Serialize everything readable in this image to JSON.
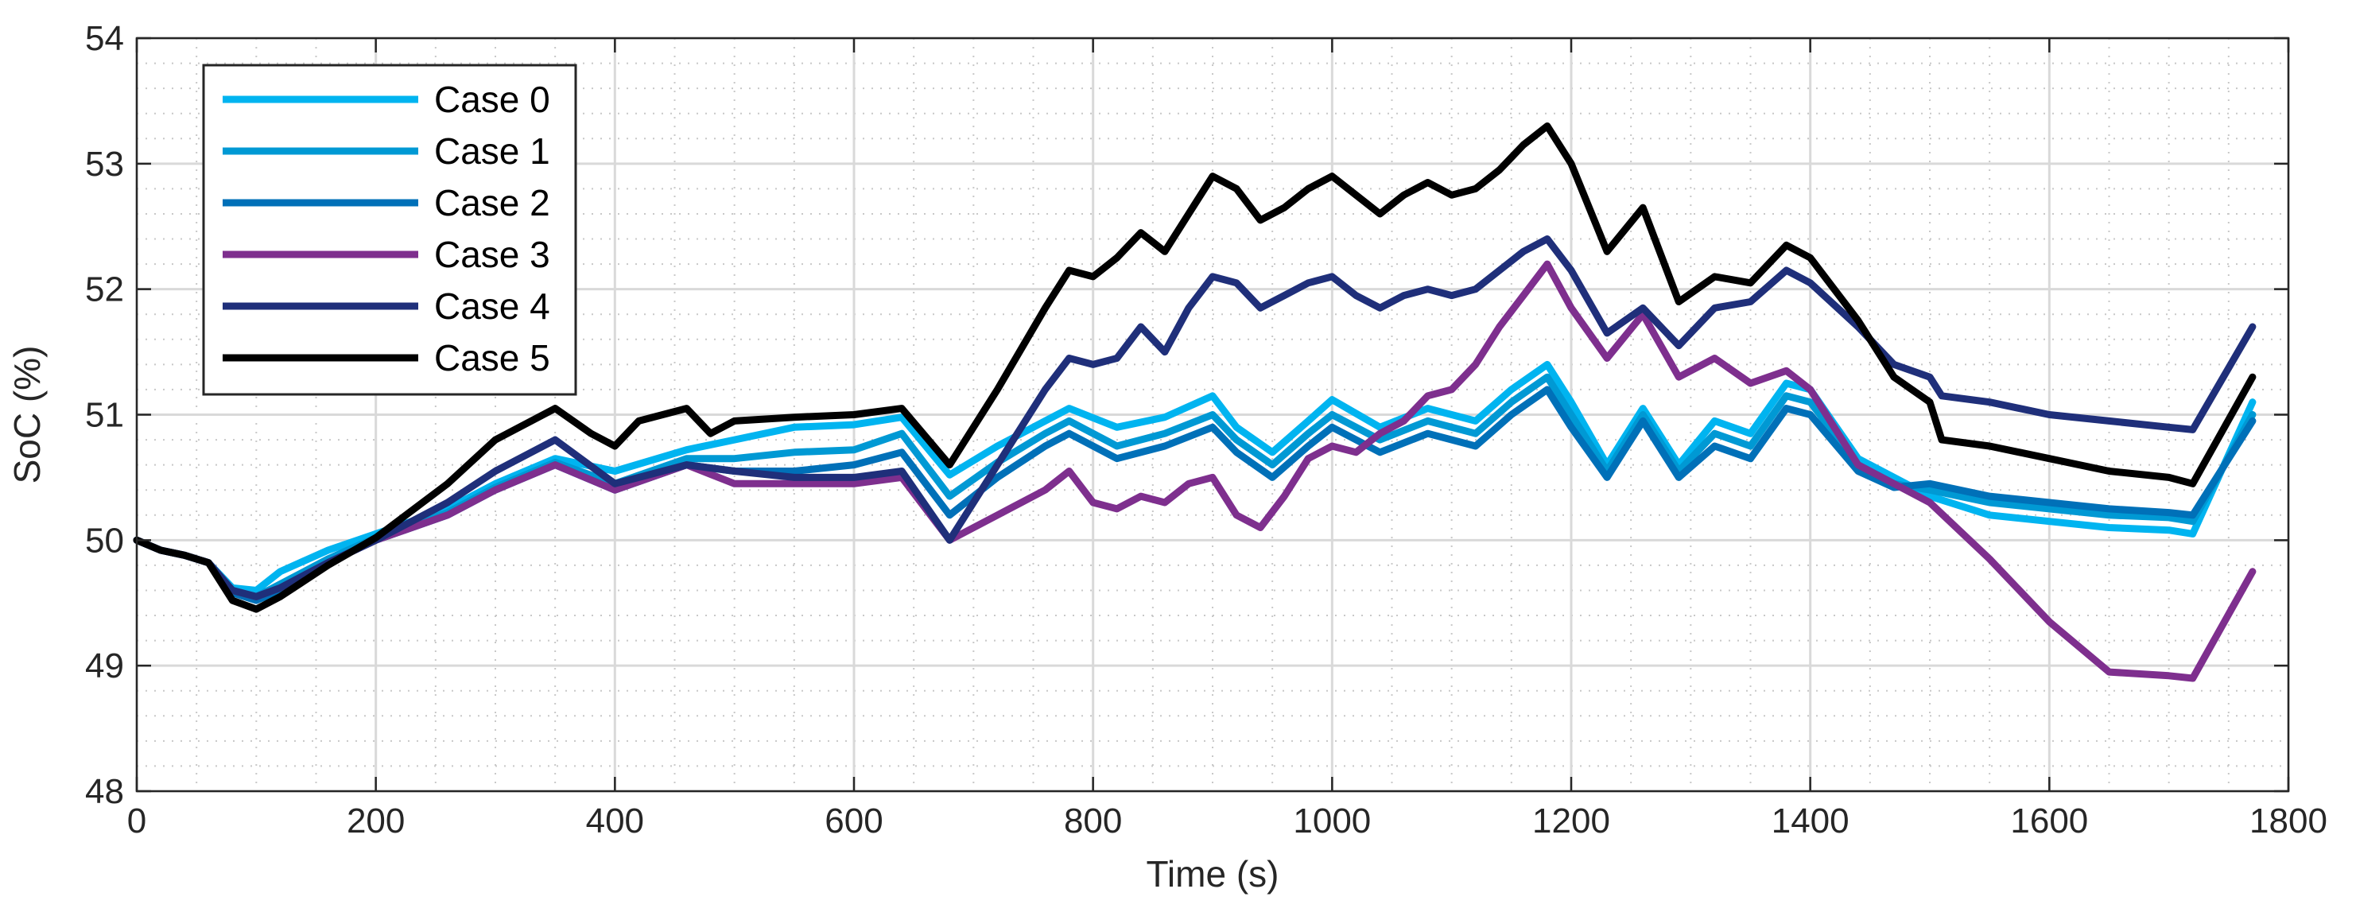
{
  "chart_data": {
    "type": "line",
    "xlabel": "Time (s)",
    "ylabel": "SoC (%)",
    "xlim": [
      0,
      1800
    ],
    "ylim": [
      48,
      54
    ],
    "xticks": [
      "0",
      "200",
      "400",
      "600",
      "800",
      "1000",
      "1200",
      "1400",
      "1600",
      "1800"
    ],
    "yticks": [
      "48",
      "49",
      "50",
      "51",
      "52",
      "53",
      "54"
    ],
    "grid": "major-and-minor",
    "legend_position": "top-left",
    "series": [
      {
        "name": "Case 0",
        "color": "#00B4F0",
        "x": [
          0,
          20,
          40,
          60,
          80,
          100,
          120,
          160,
          200,
          260,
          300,
          350,
          400,
          460,
          500,
          550,
          600,
          640,
          680,
          720,
          760,
          780,
          820,
          860,
          900,
          920,
          950,
          980,
          1000,
          1040,
          1080,
          1120,
          1150,
          1180,
          1200,
          1230,
          1260,
          1290,
          1320,
          1350,
          1380,
          1400,
          1440,
          1470,
          1500,
          1550,
          1600,
          1650,
          1700,
          1720,
          1770
        ],
        "y": [
          50.0,
          49.92,
          49.88,
          49.82,
          49.62,
          49.6,
          49.75,
          49.92,
          50.05,
          50.25,
          50.45,
          50.65,
          50.55,
          50.72,
          50.8,
          50.9,
          50.92,
          50.98,
          50.52,
          50.75,
          50.95,
          51.05,
          50.9,
          50.98,
          51.15,
          50.9,
          50.7,
          50.95,
          51.12,
          50.9,
          51.05,
          50.95,
          51.2,
          51.4,
          51.1,
          50.6,
          51.05,
          50.6,
          50.95,
          50.85,
          51.25,
          51.2,
          50.65,
          50.5,
          50.35,
          50.2,
          50.15,
          50.1,
          50.08,
          50.05,
          51.1
        ]
      },
      {
        "name": "Case 1",
        "color": "#0099D4",
        "x": [
          0,
          20,
          40,
          60,
          80,
          100,
          120,
          160,
          200,
          260,
          300,
          350,
          400,
          460,
          500,
          550,
          600,
          640,
          680,
          720,
          760,
          780,
          820,
          860,
          900,
          920,
          950,
          980,
          1000,
          1040,
          1080,
          1120,
          1150,
          1180,
          1200,
          1230,
          1260,
          1290,
          1320,
          1350,
          1380,
          1400,
          1440,
          1470,
          1500,
          1550,
          1600,
          1650,
          1700,
          1720,
          1770
        ],
        "y": [
          50.0,
          49.92,
          49.88,
          49.82,
          49.6,
          49.55,
          49.65,
          49.85,
          50.02,
          50.22,
          50.42,
          50.62,
          50.45,
          50.65,
          50.65,
          50.7,
          50.72,
          50.85,
          50.35,
          50.62,
          50.85,
          50.95,
          50.75,
          50.85,
          51.0,
          50.8,
          50.6,
          50.85,
          51.0,
          50.8,
          50.95,
          50.85,
          51.1,
          51.3,
          51.0,
          50.55,
          51.0,
          50.55,
          50.85,
          50.75,
          51.15,
          51.1,
          50.6,
          50.45,
          50.4,
          50.3,
          50.25,
          50.2,
          50.18,
          50.15,
          51.0
        ]
      },
      {
        "name": "Case 2",
        "color": "#0070B8",
        "x": [
          0,
          20,
          40,
          60,
          80,
          100,
          120,
          160,
          200,
          260,
          300,
          350,
          400,
          460,
          500,
          550,
          600,
          640,
          680,
          720,
          760,
          780,
          820,
          860,
          900,
          920,
          950,
          980,
          1000,
          1040,
          1080,
          1120,
          1150,
          1180,
          1200,
          1230,
          1260,
          1290,
          1320,
          1350,
          1380,
          1400,
          1440,
          1470,
          1500,
          1550,
          1600,
          1650,
          1700,
          1720,
          1770
        ],
        "y": [
          50.0,
          49.92,
          49.88,
          49.82,
          49.58,
          49.52,
          49.6,
          49.82,
          50.0,
          50.2,
          50.4,
          50.6,
          50.4,
          50.6,
          50.55,
          50.55,
          50.6,
          50.7,
          50.2,
          50.5,
          50.75,
          50.85,
          50.65,
          50.75,
          50.9,
          50.7,
          50.5,
          50.75,
          50.9,
          50.7,
          50.85,
          50.75,
          51.0,
          51.2,
          50.9,
          50.5,
          50.95,
          50.5,
          50.75,
          50.65,
          51.05,
          51.0,
          50.55,
          50.42,
          50.45,
          50.35,
          50.3,
          50.25,
          50.22,
          50.2,
          50.95
        ]
      },
      {
        "name": "Case 3",
        "color": "#7E2F8E",
        "x": [
          0,
          20,
          40,
          60,
          80,
          100,
          120,
          160,
          200,
          260,
          300,
          350,
          400,
          460,
          500,
          550,
          600,
          640,
          680,
          720,
          760,
          780,
          800,
          820,
          840,
          860,
          880,
          900,
          920,
          940,
          960,
          980,
          1000,
          1020,
          1040,
          1060,
          1080,
          1100,
          1120,
          1140,
          1160,
          1180,
          1200,
          1230,
          1260,
          1290,
          1320,
          1350,
          1380,
          1400,
          1440,
          1470,
          1500,
          1550,
          1600,
          1650,
          1700,
          1720,
          1770
        ],
        "y": [
          50.0,
          49.92,
          49.88,
          49.82,
          49.6,
          49.55,
          49.62,
          49.82,
          50.0,
          50.2,
          50.4,
          50.6,
          50.4,
          50.6,
          50.45,
          50.45,
          50.45,
          50.5,
          50.0,
          50.2,
          50.4,
          50.55,
          50.3,
          50.25,
          50.35,
          50.3,
          50.45,
          50.5,
          50.2,
          50.1,
          50.35,
          50.65,
          50.75,
          50.7,
          50.85,
          50.95,
          51.15,
          51.2,
          51.4,
          51.7,
          51.95,
          52.2,
          51.85,
          51.45,
          51.8,
          51.3,
          51.45,
          51.25,
          51.35,
          51.2,
          50.6,
          50.45,
          50.3,
          49.85,
          49.35,
          48.95,
          48.92,
          48.9,
          49.75
        ]
      },
      {
        "name": "Case 4",
        "color": "#1F2F7A",
        "x": [
          0,
          20,
          40,
          60,
          80,
          100,
          120,
          160,
          200,
          260,
          300,
          350,
          400,
          460,
          500,
          550,
          600,
          640,
          680,
          720,
          760,
          780,
          800,
          820,
          840,
          860,
          880,
          900,
          920,
          940,
          960,
          980,
          1000,
          1020,
          1040,
          1060,
          1080,
          1100,
          1120,
          1140,
          1160,
          1180,
          1200,
          1230,
          1260,
          1290,
          1320,
          1350,
          1380,
          1400,
          1440,
          1470,
          1500,
          1510,
          1550,
          1600,
          1650,
          1700,
          1720,
          1770
        ],
        "y": [
          50.0,
          49.92,
          49.88,
          49.82,
          49.6,
          49.55,
          49.62,
          49.82,
          50.0,
          50.3,
          50.55,
          50.8,
          50.45,
          50.6,
          50.55,
          50.5,
          50.5,
          50.55,
          50.0,
          50.6,
          51.2,
          51.45,
          51.4,
          51.45,
          51.7,
          51.5,
          51.85,
          52.1,
          52.05,
          51.85,
          51.95,
          52.05,
          52.1,
          51.95,
          51.85,
          51.95,
          52.0,
          51.95,
          52.0,
          52.15,
          52.3,
          52.4,
          52.15,
          51.65,
          51.85,
          51.55,
          51.85,
          51.9,
          52.15,
          52.05,
          51.7,
          51.4,
          51.3,
          51.15,
          51.1,
          51.0,
          50.95,
          50.9,
          50.88,
          51.7
        ]
      },
      {
        "name": "Case 5",
        "color": "#000000",
        "x": [
          0,
          20,
          40,
          60,
          80,
          100,
          120,
          160,
          200,
          260,
          300,
          350,
          380,
          400,
          420,
          460,
          480,
          500,
          550,
          600,
          640,
          680,
          720,
          760,
          780,
          800,
          820,
          840,
          860,
          880,
          900,
          920,
          940,
          960,
          980,
          1000,
          1020,
          1040,
          1060,
          1080,
          1100,
          1120,
          1140,
          1160,
          1180,
          1200,
          1230,
          1260,
          1290,
          1320,
          1350,
          1380,
          1400,
          1440,
          1470,
          1500,
          1510,
          1550,
          1600,
          1650,
          1700,
          1720,
          1770
        ],
        "y": [
          50.0,
          49.92,
          49.88,
          49.82,
          49.52,
          49.45,
          49.55,
          49.8,
          50.02,
          50.45,
          50.8,
          51.05,
          50.85,
          50.75,
          50.95,
          51.05,
          50.85,
          50.95,
          50.98,
          51.0,
          51.05,
          50.6,
          51.2,
          51.85,
          52.15,
          52.1,
          52.25,
          52.45,
          52.3,
          52.6,
          52.9,
          52.8,
          52.55,
          52.65,
          52.8,
          52.9,
          52.75,
          52.6,
          52.75,
          52.85,
          52.75,
          52.8,
          52.95,
          53.15,
          53.3,
          53.0,
          52.3,
          52.65,
          51.9,
          52.1,
          52.05,
          52.35,
          52.25,
          51.75,
          51.3,
          51.1,
          50.8,
          50.75,
          50.65,
          50.55,
          50.5,
          50.45,
          51.3
        ]
      }
    ]
  }
}
